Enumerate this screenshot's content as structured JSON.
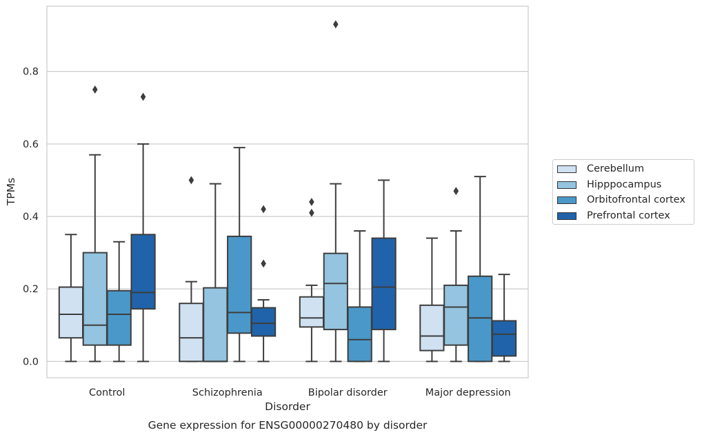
{
  "chart_data": {
    "type": "box",
    "title": "Gene expression for ENSG00000270480 by disorder",
    "xlabel": "Disorder",
    "ylabel": "TPMs",
    "ylim": [
      -0.045,
      0.98
    ],
    "yticks": [
      "0.0",
      "0.2",
      "0.4",
      "0.6",
      "0.8"
    ],
    "ytick_values": [
      0.0,
      0.2,
      0.4,
      0.6,
      0.8
    ],
    "grid": "horizontal",
    "legend_placement": "right",
    "categories": [
      "Control",
      "Schizophrenia",
      "Bipolar disorder",
      "Major depression"
    ],
    "series": [
      {
        "name": "Cerebellum",
        "color": "#d0e1f2",
        "boxes": [
          {
            "whislo": 0.0,
            "q1": 0.065,
            "med": 0.13,
            "q3": 0.205,
            "whishi": 0.35,
            "fliers": []
          },
          {
            "whislo": 0.0,
            "q1": 0.0,
            "med": 0.065,
            "q3": 0.16,
            "whishi": 0.22,
            "fliers": [
              0.5
            ]
          },
          {
            "whislo": 0.0,
            "q1": 0.095,
            "med": 0.12,
            "q3": 0.178,
            "whishi": 0.21,
            "fliers": [
              0.41,
              0.44
            ]
          },
          {
            "whislo": 0.0,
            "q1": 0.03,
            "med": 0.07,
            "q3": 0.155,
            "whishi": 0.34,
            "fliers": []
          }
        ]
      },
      {
        "name": "Hipppocampus",
        "color": "#94c4df",
        "boxes": [
          {
            "whislo": 0.0,
            "q1": 0.045,
            "med": 0.1,
            "q3": 0.3,
            "whishi": 0.57,
            "fliers": [
              0.75
            ]
          },
          {
            "whislo": 0.0,
            "q1": 0.0,
            "med": 0.0,
            "q3": 0.203,
            "whishi": 0.49,
            "fliers": []
          },
          {
            "whislo": 0.0,
            "q1": 0.088,
            "med": 0.215,
            "q3": 0.298,
            "whishi": 0.49,
            "fliers": [
              0.93
            ]
          },
          {
            "whislo": 0.0,
            "q1": 0.045,
            "med": 0.15,
            "q3": 0.21,
            "whishi": 0.36,
            "fliers": [
              0.47
            ]
          }
        ]
      },
      {
        "name": "Orbitofrontal cortex",
        "color": "#4a98c9",
        "boxes": [
          {
            "whislo": 0.0,
            "q1": 0.045,
            "med": 0.13,
            "q3": 0.195,
            "whishi": 0.33,
            "fliers": []
          },
          {
            "whislo": 0.0,
            "q1": 0.078,
            "med": 0.135,
            "q3": 0.345,
            "whishi": 0.59,
            "fliers": []
          },
          {
            "whislo": 0.0,
            "q1": 0.0,
            "med": 0.06,
            "q3": 0.15,
            "whishi": 0.36,
            "fliers": []
          },
          {
            "whislo": 0.0,
            "q1": 0.0,
            "med": 0.12,
            "q3": 0.235,
            "whishi": 0.51,
            "fliers": []
          }
        ]
      },
      {
        "name": "Prefrontal cortex",
        "color": "#2163aa",
        "boxes": [
          {
            "whislo": 0.0,
            "q1": 0.145,
            "med": 0.19,
            "q3": 0.35,
            "whishi": 0.6,
            "fliers": [
              0.73
            ]
          },
          {
            "whislo": 0.0,
            "q1": 0.07,
            "med": 0.105,
            "q3": 0.148,
            "whishi": 0.17,
            "fliers": [
              0.27,
              0.42
            ]
          },
          {
            "whislo": 0.0,
            "q1": 0.088,
            "med": 0.205,
            "q3": 0.34,
            "whishi": 0.5,
            "fliers": []
          },
          {
            "whislo": 0.0,
            "q1": 0.015,
            "med": 0.075,
            "q3": 0.112,
            "whishi": 0.24,
            "fliers": []
          }
        ]
      }
    ]
  }
}
